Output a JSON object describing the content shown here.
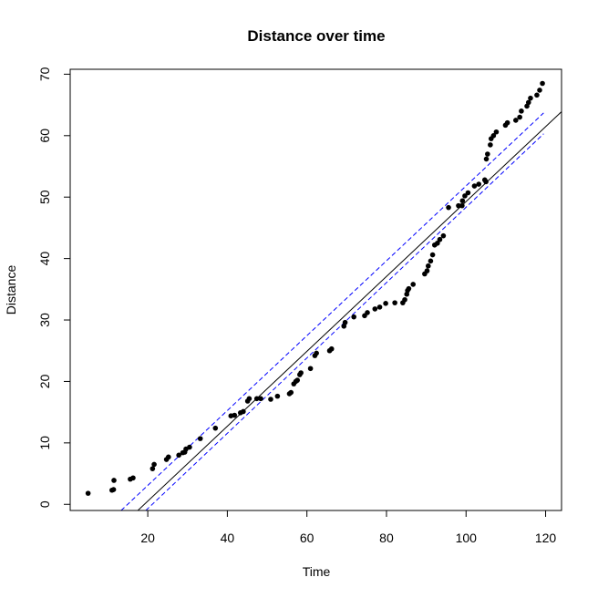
{
  "chart_data": {
    "type": "scatter",
    "title": "Distance over time",
    "xlabel": "Time",
    "ylabel": "Distance",
    "xlim": [
      0.5,
      124
    ],
    "ylim": [
      -1,
      70.8
    ],
    "x_ticks": [
      20,
      40,
      60,
      80,
      100,
      120
    ],
    "y_ticks": [
      0,
      10,
      20,
      30,
      40,
      50,
      60,
      70
    ],
    "grid": false,
    "legend": "none",
    "colors": {
      "points": "#000000",
      "fit_line": "#000000",
      "band": "#0000ff"
    },
    "fit_line": {
      "x": [
        17.5,
        124
      ],
      "y": [
        -1,
        63.9
      ]
    },
    "band_upper": {
      "x": [
        13.3,
        119.5
      ],
      "y": [
        -1,
        63.7
      ]
    },
    "band_lower": {
      "x": [
        19.5,
        119.5
      ],
      "y": [
        -1,
        60.3
      ]
    },
    "points": [
      [
        5,
        1.8
      ],
      [
        11,
        2.3
      ],
      [
        11.4,
        2.4
      ],
      [
        11.5,
        3.9
      ],
      [
        15.6,
        4.1
      ],
      [
        16.3,
        4.3
      ],
      [
        21.2,
        5.8
      ],
      [
        21.6,
        6.5
      ],
      [
        24.7,
        7.3
      ],
      [
        25.2,
        7.7
      ],
      [
        27.8,
        8
      ],
      [
        28.8,
        8.4
      ],
      [
        29.3,
        8.5
      ],
      [
        29.6,
        9
      ],
      [
        30.5,
        9.3
      ],
      [
        33.2,
        10.7
      ],
      [
        37,
        12.4
      ],
      [
        40.9,
        14.4
      ],
      [
        41.8,
        14.5
      ],
      [
        43.3,
        14.9
      ],
      [
        44,
        15.1
      ],
      [
        45.1,
        16.8
      ],
      [
        45.5,
        17.2
      ],
      [
        47.4,
        17.2
      ],
      [
        48.4,
        17.2
      ],
      [
        50.9,
        17.1
      ],
      [
        52.6,
        17.6
      ],
      [
        55.6,
        18
      ],
      [
        56,
        18.2
      ],
      [
        56.7,
        19.6
      ],
      [
        57.2,
        20
      ],
      [
        57.6,
        20.2
      ],
      [
        58.2,
        21.1
      ],
      [
        58.5,
        21.4
      ],
      [
        60.9,
        22.1
      ],
      [
        62,
        24.2
      ],
      [
        62.4,
        24.6
      ],
      [
        65.7,
        25
      ],
      [
        66.2,
        25.3
      ],
      [
        69.3,
        29
      ],
      [
        69.6,
        29.6
      ],
      [
        71.8,
        30.5
      ],
      [
        74.5,
        30.7
      ],
      [
        75.2,
        31.2
      ],
      [
        77.1,
        31.8
      ],
      [
        78.3,
        32.1
      ],
      [
        79.8,
        32.7
      ],
      [
        82.1,
        32.8
      ],
      [
        84.1,
        32.8
      ],
      [
        84.6,
        33.3
      ],
      [
        85.1,
        34.2
      ],
      [
        85.3,
        34.8
      ],
      [
        85.6,
        35.1
      ],
      [
        86.7,
        35.8
      ],
      [
        89.6,
        37.5
      ],
      [
        90.2,
        38
      ],
      [
        90.5,
        38.8
      ],
      [
        91.1,
        39.6
      ],
      [
        91.6,
        40.6
      ],
      [
        92.1,
        42.2
      ],
      [
        92.8,
        42.5
      ],
      [
        93.4,
        43.1
      ],
      [
        94.3,
        43.7
      ],
      [
        95.6,
        48.3
      ],
      [
        98.1,
        48.6
      ],
      [
        99,
        48.6
      ],
      [
        99.1,
        49.4
      ],
      [
        99.7,
        50.2
      ],
      [
        100.5,
        50.7
      ],
      [
        102.1,
        51.8
      ],
      [
        103.2,
        52.1
      ],
      [
        104.7,
        52.8
      ],
      [
        105,
        52.5
      ],
      [
        105.1,
        56.2
      ],
      [
        105.4,
        57
      ],
      [
        106.1,
        58.5
      ],
      [
        106.3,
        59.5
      ],
      [
        106.9,
        60
      ],
      [
        107.6,
        60.6
      ],
      [
        109.9,
        61.7
      ],
      [
        110.4,
        62.1
      ],
      [
        112.5,
        62.5
      ],
      [
        113.5,
        63
      ],
      [
        113.9,
        64
      ],
      [
        115.3,
        64.8
      ],
      [
        115.7,
        65.4
      ],
      [
        116.2,
        66.1
      ],
      [
        117.8,
        66.6
      ],
      [
        118.5,
        67.4
      ],
      [
        119.2,
        68.5
      ]
    ]
  }
}
